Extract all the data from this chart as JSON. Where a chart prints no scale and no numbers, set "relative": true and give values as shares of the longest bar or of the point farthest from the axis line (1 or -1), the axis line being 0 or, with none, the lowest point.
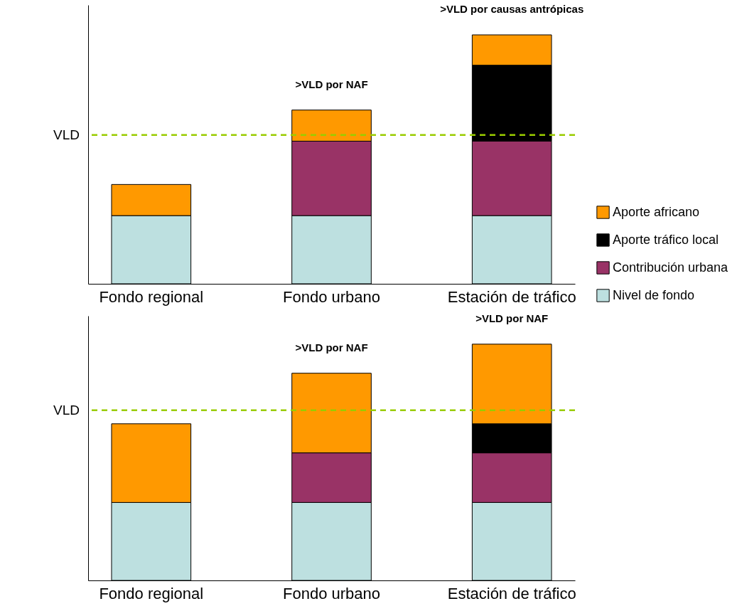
{
  "chart_data": [
    {
      "type": "bar",
      "stacked": true,
      "relative": true,
      "legend": "right",
      "categories": [
        "Fondo regional",
        "Fondo urbano",
        "Estación de tráfico"
      ],
      "series": [
        {
          "name": "Nivel de fondo",
          "color": "#bde0e0",
          "values": [
            0.274,
            0.274,
            0.274
          ]
        },
        {
          "name": "Contribución urbana",
          "color": "#993366",
          "values": [
            null,
            0.299,
            0.299
          ]
        },
        {
          "name": "Aporte tráfico local",
          "color": "#000000",
          "values": [
            null,
            null,
            0.305
          ]
        },
        {
          "name": "Aporte africano",
          "color": "#ff9900",
          "values": [
            0.125,
            0.125,
            0.122
          ]
        }
      ],
      "ref_lines": [
        {
          "axis": "y",
          "value": 0.598,
          "label": "VLD",
          "color": "#99cc00",
          "line_style": "dashed"
        }
      ],
      "annotations": [
        {
          "text": ">VLD por NAF",
          "x": "Fondo urbano",
          "y": 0.698
        },
        {
          "text": ">VLD por causas antrópicas",
          "x": "Estación de tráfico",
          "y": 1.0
        }
      ]
    },
    {
      "type": "bar",
      "stacked": true,
      "relative": true,
      "categories": [
        "Fondo regional",
        "Fondo urbano",
        "Estación de tráfico"
      ],
      "series": [
        {
          "name": "Nivel de fondo",
          "color": "#bde0e0",
          "values": [
            0.33,
            0.33,
            0.33
          ]
        },
        {
          "name": "Contribución urbana",
          "color": "#993366",
          "values": [
            null,
            0.21,
            0.21
          ]
        },
        {
          "name": "Aporte tráfico local",
          "color": "#000000",
          "values": [
            null,
            null,
            0.123
          ]
        },
        {
          "name": "Aporte africano",
          "color": "#ff9900",
          "values": [
            0.333,
            0.337,
            0.337
          ]
        }
      ],
      "ref_lines": [
        {
          "axis": "y",
          "value": 0.72,
          "label": "VLD",
          "color": "#99cc00",
          "line_style": "dashed"
        }
      ],
      "annotations": [
        {
          "text": ">VLD por NAF",
          "x": "Fondo urbano",
          "y": 0.877
        },
        {
          "text": ">VLD por NAF",
          "x": "Estación de tráfico",
          "y": 1.0
        }
      ]
    }
  ]
}
